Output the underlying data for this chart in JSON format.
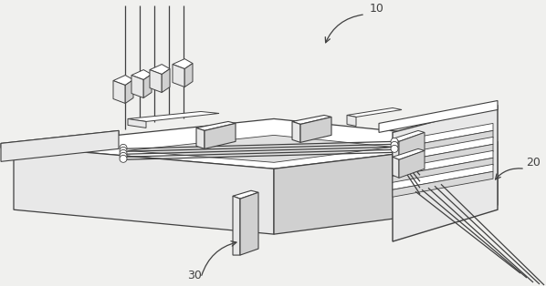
{
  "bg_color": "#f0f0ee",
  "lc": "#404040",
  "white": "#ffffff",
  "light": "#e8e8e8",
  "mid": "#d0d0d0",
  "dark": "#282828",
  "label_10": "10",
  "label_20": "20",
  "label_30": "30"
}
